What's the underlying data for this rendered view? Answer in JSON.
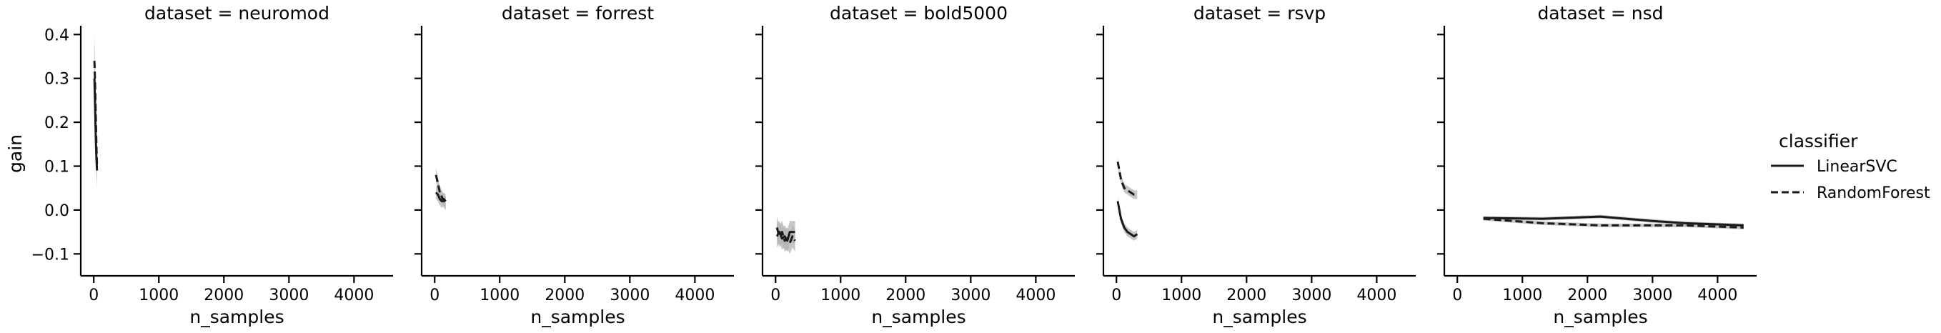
{
  "chart_data": {
    "type": "line",
    "facet_label_prefix": "dataset = ",
    "xlabel": "n_samples",
    "ylabel": "gain",
    "xlim": [
      -200,
      4600
    ],
    "ylim": [
      -0.15,
      0.42
    ],
    "xticks": [
      0,
      1000,
      2000,
      3000,
      4000
    ],
    "yticks": [
      -0.1,
      0.0,
      0.1,
      0.2,
      0.3,
      0.4
    ],
    "ytick_labels": [
      "−0.1",
      "0.0",
      "0.1",
      "0.2",
      "0.3",
      "0.4"
    ],
    "grid": false,
    "band_color": "#b3b3b3",
    "line_color": "#1a1a1a",
    "legend": {
      "title": "classifier",
      "placement": "right",
      "entries": [
        {
          "label": "LinearSVC",
          "style": "solid"
        },
        {
          "label": "RandomForest",
          "style": "dashed"
        }
      ]
    },
    "panels": [
      {
        "dataset": "neuromod",
        "series": [
          {
            "name": "LinearSVC",
            "style": "solid",
            "x": [
              10,
              20,
              30,
              40,
              50
            ],
            "y": [
              0.3,
              0.24,
              0.17,
              0.12,
              0.09
            ],
            "err": [
              0.06,
              0.05,
              0.04,
              0.04,
              0.04
            ]
          },
          {
            "name": "RandomForest",
            "style": "dashed",
            "x": [
              10,
              20,
              30,
              40,
              50
            ],
            "y": [
              0.34,
              0.29,
              0.22,
              0.15,
              0.1
            ],
            "err": [
              0.06,
              0.05,
              0.05,
              0.04,
              0.04
            ]
          }
        ]
      },
      {
        "dataset": "forrest",
        "series": [
          {
            "name": "LinearSVC",
            "style": "solid",
            "x": [
              20,
              50,
              80,
              110,
              140,
              170
            ],
            "y": [
              0.04,
              0.035,
              0.025,
              0.02,
              0.025,
              0.02
            ],
            "err": [
              0.015,
              0.015,
              0.015,
              0.015,
              0.015,
              0.015
            ]
          },
          {
            "name": "RandomForest",
            "style": "dashed",
            "x": [
              20,
              50,
              80,
              110,
              140,
              170
            ],
            "y": [
              0.08,
              0.06,
              0.04,
              0.03,
              0.02,
              0.015
            ],
            "err": [
              0.015,
              0.015,
              0.015,
              0.015,
              0.015,
              0.015
            ]
          }
        ]
      },
      {
        "dataset": "bold5000",
        "series": [
          {
            "name": "LinearSVC",
            "style": "solid",
            "x": [
              20,
              60,
              100,
              140,
              180,
              220,
              260,
              300
            ],
            "y": [
              -0.06,
              -0.05,
              -0.065,
              -0.06,
              -0.07,
              -0.05,
              -0.05,
              -0.05
            ],
            "err": [
              0.025,
              0.025,
              0.025,
              0.025,
              0.025,
              0.025,
              0.025,
              0.025
            ]
          },
          {
            "name": "RandomForest",
            "style": "dashed",
            "x": [
              20,
              60,
              100,
              140,
              180,
              220,
              260,
              300
            ],
            "y": [
              -0.04,
              -0.06,
              -0.05,
              -0.07,
              -0.065,
              -0.075,
              -0.06,
              -0.07
            ],
            "err": [
              0.025,
              0.025,
              0.025,
              0.025,
              0.025,
              0.025,
              0.025,
              0.025
            ]
          }
        ]
      },
      {
        "dataset": "rsvp",
        "series": [
          {
            "name": "LinearSVC",
            "style": "solid",
            "x": [
              20,
              70,
              120,
              170,
              220,
              270,
              320
            ],
            "y": [
              0.02,
              -0.02,
              -0.04,
              -0.05,
              -0.055,
              -0.06,
              -0.055
            ],
            "err": [
              0.01,
              0.01,
              0.01,
              0.01,
              0.01,
              0.01,
              0.01
            ]
          },
          {
            "name": "RandomForest",
            "style": "dashed",
            "x": [
              20,
              70,
              120,
              170,
              220,
              270,
              320
            ],
            "y": [
              0.11,
              0.07,
              0.05,
              0.045,
              0.04,
              0.035,
              0.035
            ],
            "err": [
              0.01,
              0.01,
              0.01,
              0.01,
              0.01,
              0.01,
              0.01
            ]
          }
        ]
      },
      {
        "dataset": "nsd",
        "series": [
          {
            "name": "LinearSVC",
            "style": "solid",
            "x": [
              400,
              1300,
              2200,
              3000,
              3500,
              4400
            ],
            "y": [
              -0.018,
              -0.02,
              -0.015,
              -0.025,
              -0.03,
              -0.035
            ],
            "err": [
              0.004,
              0.004,
              0.004,
              0.004,
              0.004,
              0.004
            ]
          },
          {
            "name": "RandomForest",
            "style": "dashed",
            "x": [
              400,
              1300,
              2200,
              3000,
              3500,
              4400
            ],
            "y": [
              -0.02,
              -0.03,
              -0.035,
              -0.035,
              -0.035,
              -0.04
            ],
            "err": [
              0.004,
              0.004,
              0.004,
              0.004,
              0.004,
              0.004
            ]
          }
        ]
      }
    ]
  }
}
